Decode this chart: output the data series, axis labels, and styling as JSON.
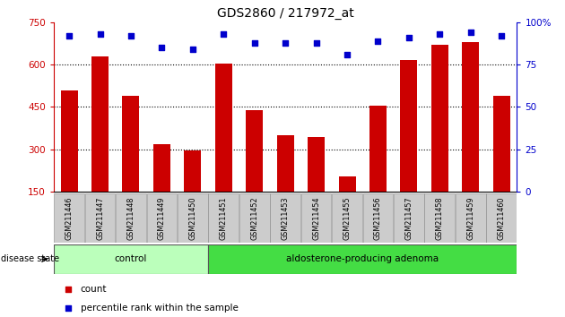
{
  "title": "GDS2860 / 217972_at",
  "samples": [
    "GSM211446",
    "GSM211447",
    "GSM211448",
    "GSM211449",
    "GSM211450",
    "GSM211451",
    "GSM211452",
    "GSM211453",
    "GSM211454",
    "GSM211455",
    "GSM211456",
    "GSM211457",
    "GSM211458",
    "GSM211459",
    "GSM211460"
  ],
  "counts": [
    510,
    630,
    490,
    320,
    295,
    605,
    440,
    350,
    345,
    205,
    455,
    615,
    670,
    680,
    490
  ],
  "percentiles": [
    92,
    93,
    92,
    85,
    84,
    93,
    88,
    88,
    88,
    81,
    89,
    91,
    93,
    94,
    92
  ],
  "ylim_left": [
    150,
    750
  ],
  "ylim_right": [
    0,
    100
  ],
  "yticks_left": [
    150,
    300,
    450,
    600,
    750
  ],
  "yticks_right": [
    0,
    25,
    50,
    75,
    100
  ],
  "bar_color": "#cc0000",
  "dot_color": "#0000cc",
  "bg_color": "#ffffff",
  "control_samples": 5,
  "control_label": "control",
  "adenoma_label": "aldosterone-producing adenoma",
  "control_bg": "#bbffbb",
  "adenoma_bg": "#44dd44",
  "label_bg": "#cccccc",
  "disease_state_label": "disease state",
  "legend_count": "count",
  "legend_percentile": "percentile rank within the sample",
  "title_fontsize": 10,
  "bar_width": 0.55,
  "grid_yticks": [
    300,
    450,
    600
  ]
}
